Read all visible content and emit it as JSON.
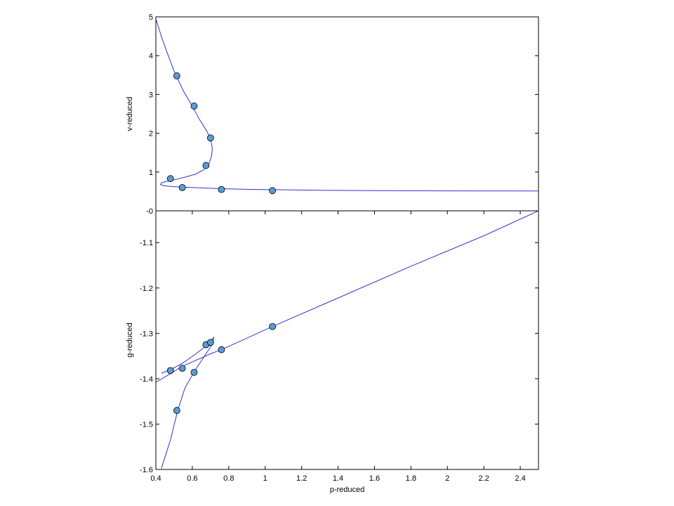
{
  "chart_data": [
    {
      "type": "line",
      "ylabel": "v-reduced",
      "xlim": [
        0.4,
        2.5
      ],
      "ylim": [
        0,
        5
      ],
      "yticks": [
        0,
        1,
        2,
        3,
        4,
        5
      ],
      "ytick_labels": [
        "-0",
        "1",
        "2",
        "3",
        "4",
        "5"
      ],
      "line_color": "#3333cc",
      "marker_color": "#5b9bd5",
      "series": [
        {
          "kind": "curve",
          "x": [
            0.4,
            0.43,
            0.46,
            0.5,
            0.55,
            0.6,
            0.64,
            0.68,
            0.7,
            0.71,
            0.705,
            0.69,
            0.66,
            0.62,
            0.57,
            0.52,
            0.48,
            0.45,
            0.43,
            0.425,
            0.44,
            0.48,
            0.55,
            0.65,
            0.76,
            0.9,
            1.04,
            1.3,
            1.6,
            2.0,
            2.5
          ],
          "y": [
            4.95,
            4.5,
            4.1,
            3.6,
            3.1,
            2.7,
            2.35,
            2.05,
            1.85,
            1.6,
            1.4,
            1.2,
            1.05,
            0.95,
            0.88,
            0.82,
            0.78,
            0.75,
            0.72,
            0.68,
            0.65,
            0.63,
            0.61,
            0.59,
            0.57,
            0.555,
            0.545,
            0.53,
            0.52,
            0.515,
            0.51
          ]
        },
        {
          "kind": "points",
          "x": [
            0.515,
            0.61,
            0.7,
            0.675,
            0.48,
            0.545,
            0.76,
            1.04
          ],
          "y": [
            3.48,
            2.7,
            1.88,
            1.17,
            0.83,
            0.6,
            0.55,
            0.52
          ]
        }
      ]
    },
    {
      "type": "line",
      "xlabel": "p-reduced",
      "ylabel": "g-reduced",
      "xlim": [
        0.4,
        2.5
      ],
      "ylim": [
        -1.6,
        -1.03
      ],
      "xticks": [
        0.4,
        0.6,
        0.8,
        1,
        1.2,
        1.4,
        1.6,
        1.8,
        2,
        2.2,
        2.4
      ],
      "xtick_labels": [
        "0.4",
        "0.6",
        "0.8",
        "1",
        "1.2",
        "1.4",
        "1.6",
        "1.8",
        "2",
        "2.2",
        "2.4"
      ],
      "yticks": [
        -1.6,
        -1.5,
        -1.4,
        -1.3,
        -1.2,
        -1.1
      ],
      "ytick_labels": [
        "-1.6",
        "-1.5",
        "-1.4",
        "-1.3",
        "-1.2",
        "-1.1"
      ],
      "line_color": "#3333cc",
      "marker_color": "#5b9bd5",
      "series": [
        {
          "kind": "curve",
          "x": [
            0.4,
            0.55,
            0.7,
            0.76,
            1.04,
            1.4,
            1.8,
            2.2,
            2.5
          ],
          "y": [
            -1.408,
            -1.372,
            -1.345,
            -1.336,
            -1.285,
            -1.222,
            -1.152,
            -1.085,
            -1.03
          ]
        },
        {
          "kind": "curve",
          "x": [
            0.43,
            0.48,
            0.52,
            0.56,
            0.61,
            0.65,
            0.675,
            0.7,
            0.72
          ],
          "y": [
            -1.598,
            -1.535,
            -1.47,
            -1.42,
            -1.385,
            -1.36,
            -1.345,
            -1.33,
            -1.308
          ]
        },
        {
          "kind": "curve",
          "x": [
            0.43,
            0.48,
            0.55,
            0.62,
            0.675,
            0.7,
            0.72
          ],
          "y": [
            -1.388,
            -1.38,
            -1.365,
            -1.345,
            -1.328,
            -1.318,
            -1.308
          ]
        },
        {
          "kind": "points",
          "x": [
            0.48,
            0.545,
            0.61,
            0.515,
            0.675,
            0.7,
            0.76,
            1.04
          ],
          "y": [
            -1.382,
            -1.377,
            -1.386,
            -1.47,
            -1.325,
            -1.32,
            -1.336,
            -1.285
          ]
        }
      ]
    }
  ]
}
